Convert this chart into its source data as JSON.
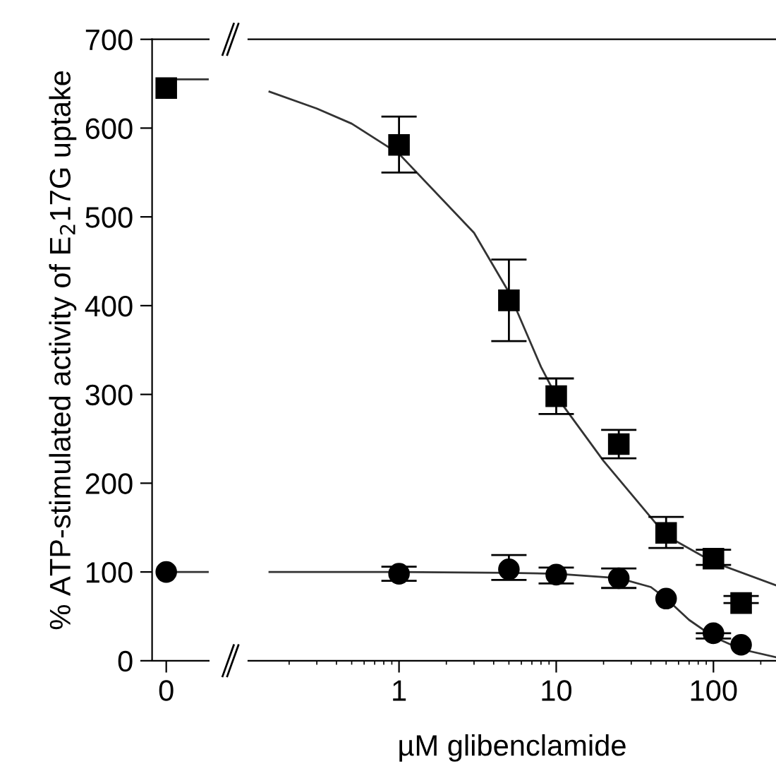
{
  "chart_data": [
    {
      "type": "scatter",
      "ylabel": "% ATP-stimulated activity of E$_{2}$17G uptake",
      "categories": [
        "0"
      ],
      "ylim": [
        0,
        700
      ],
      "yticks": [
        0,
        100,
        200,
        300,
        400,
        500,
        600,
        700
      ],
      "grid": false,
      "legend": false,
      "series": [
        {
          "color": "#000000",
          "marker": "square",
          "values": [
            645
          ]
        },
        {
          "color": "#000000",
          "marker": "circle",
          "values": [
            100
          ]
        }
      ],
      "ref_lines": [
        {
          "axis": "y",
          "value": 655,
          "color": "#333333"
        },
        {
          "axis": "y",
          "value": 100,
          "color": "#333333"
        }
      ]
    },
    {
      "type": "scatter",
      "xlabel": "µM glibenclamide",
      "log": "x",
      "x": [
        1,
        5,
        10,
        25,
        50,
        100,
        150
      ],
      "xlim": [
        0.11,
        250
      ],
      "xticks": [
        1,
        10,
        100
      ],
      "ylim": [
        0,
        700
      ],
      "tick_labels": "x",
      "grid": false,
      "legend": false,
      "series": [
        {
          "color": "#000000",
          "marker": "square",
          "values": [
            581,
            406,
            298,
            244,
            144,
            115,
            65
          ],
          "errors": [
            [
              550,
              613
            ],
            [
              360,
              452
            ],
            [
              278,
              318
            ],
            [
              228,
              260
            ],
            [
              127,
              162
            ],
            [
              108,
              125
            ],
            [
              65,
              73
            ]
          ]
        },
        {
          "color": "#000000",
          "marker": "circle",
          "values": [
            98,
            103,
            97,
            93,
            70,
            31,
            18
          ],
          "errors": [
            [
              90,
              106
            ],
            [
              91,
              119
            ],
            [
              87,
              105
            ],
            [
              82,
              104
            ],
            null,
            [
              25,
              31
            ],
            null
          ]
        },
        {
          "type": "line",
          "color": "#333333",
          "marker": "none",
          "x": [
            0.15,
            0.3,
            0.5,
            1,
            3,
            5,
            8,
            10,
            20,
            50,
            100,
            250
          ],
          "values": [
            641,
            622,
            605,
            571,
            482,
            415,
            331,
            298,
            225,
            141,
            111,
            85
          ]
        },
        {
          "type": "line",
          "color": "#333333",
          "marker": "none",
          "x": [
            0.15,
            1,
            5,
            10,
            25,
            40,
            50,
            70,
            100,
            150,
            250
          ],
          "values": [
            100,
            100,
            99,
            98,
            93,
            83,
            70,
            46,
            27,
            13,
            4
          ]
        }
      ]
    }
  ]
}
